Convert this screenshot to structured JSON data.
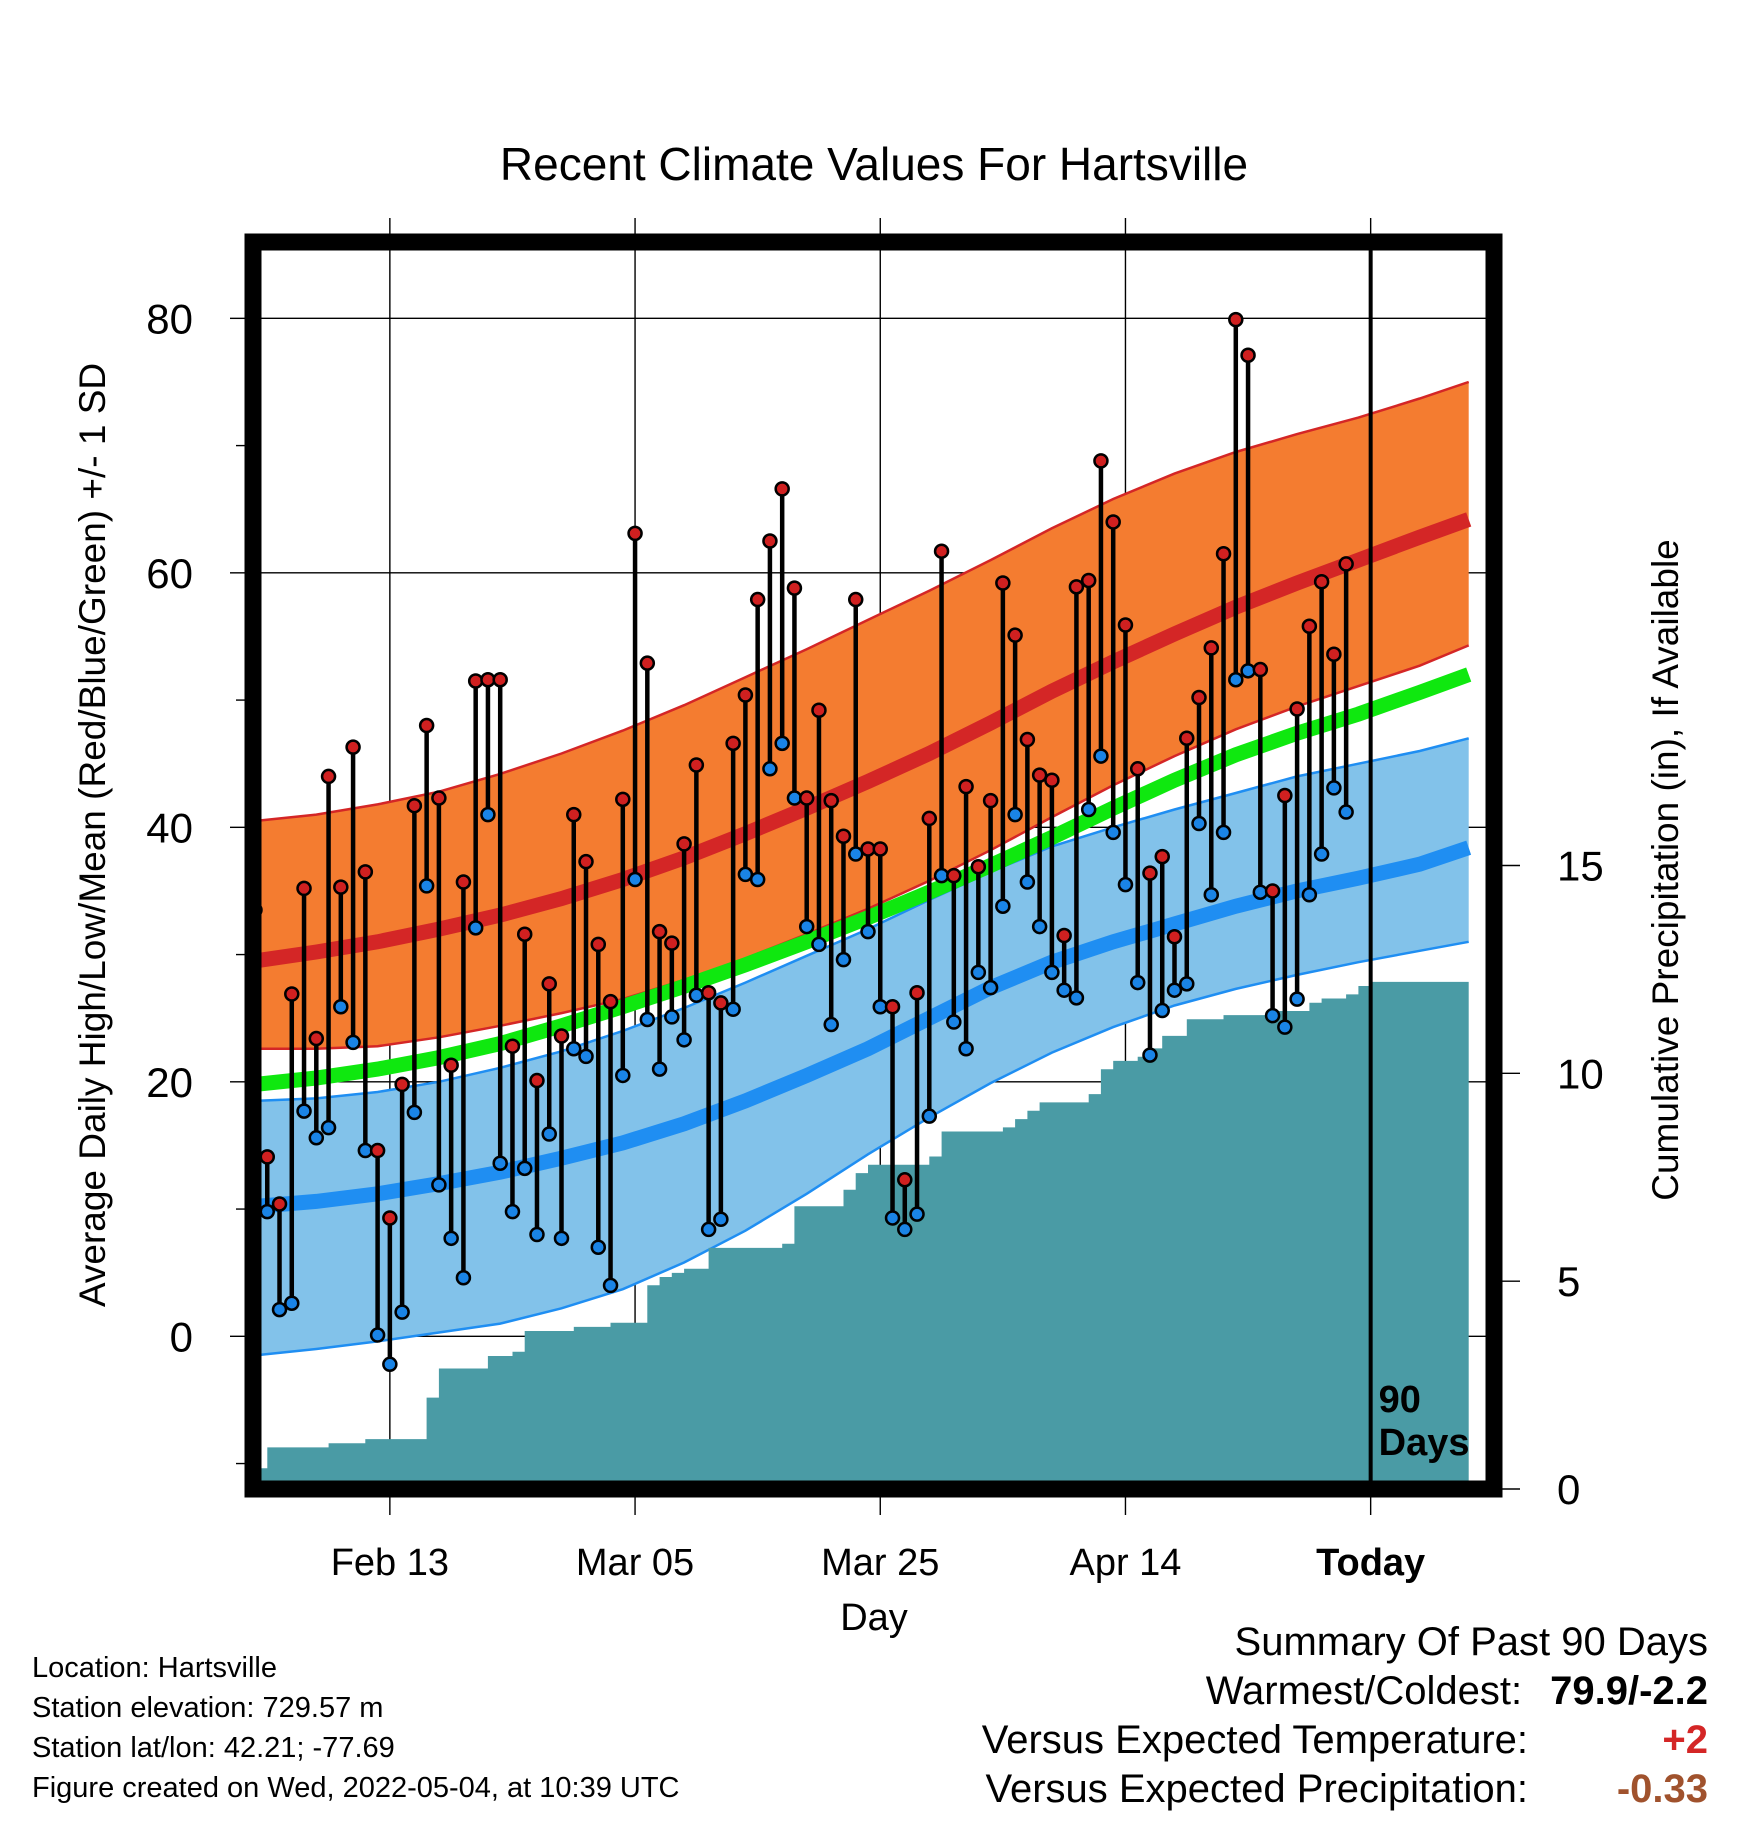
{
  "chart_data": {
    "type": "line",
    "title": "Recent Climate Values For Hartsville",
    "xlabel": "Day",
    "ylabel": "Average Daily High/Low/Mean (Red/Blue/Green) +/- 1 SD",
    "y2label": "Cumulative Precipitation (in), If Available",
    "x_ticks": [
      {
        "day": 11,
        "label": "Feb 13"
      },
      {
        "day": 31,
        "label": "Mar 05"
      },
      {
        "day": 51,
        "label": "Mar 25"
      },
      {
        "day": 71,
        "label": "Apr 14"
      },
      {
        "day": 91,
        "label": "Today"
      }
    ],
    "xlim": [
      0,
      100
    ],
    "ylim": [
      -12,
      86
    ],
    "y_ticks": [
      0,
      20,
      40,
      60,
      80
    ],
    "y2lim": [
      0,
      30
    ],
    "y2_ticks": [
      0,
      5,
      10,
      15
    ],
    "window_marker_day": 91,
    "window_marker_label": [
      "90",
      "Days"
    ],
    "colors": {
      "high_band": "#f47c30",
      "high_mean": "#d42626",
      "low_band": "#82c2ea",
      "low_mean": "#1f8ef2",
      "mean_line": "#0fe80f",
      "precip": "#4a9ba5",
      "high_point": "#d02020",
      "low_point": "#1a84e6"
    },
    "normals": {
      "days": [
        0,
        5,
        10,
        15,
        20,
        25,
        30,
        35,
        40,
        45,
        50,
        55,
        60,
        65,
        70,
        75,
        80,
        85,
        90,
        95,
        99
      ],
      "high_mean": [
        29.5,
        30.2,
        31.0,
        32.0,
        33.1,
        34.4,
        35.9,
        37.6,
        39.5,
        41.5,
        43.6,
        45.8,
        48.2,
        50.7,
        53.0,
        55.2,
        57.3,
        59.2,
        61.0,
        62.8,
        64.2
      ],
      "high_upper": [
        40.5,
        41.0,
        41.8,
        42.8,
        44.2,
        45.8,
        47.6,
        49.6,
        51.8,
        54.0,
        56.3,
        58.6,
        61.0,
        63.5,
        65.8,
        67.8,
        69.5,
        70.9,
        72.2,
        73.7,
        75.0
      ],
      "high_lower": [
        22.6,
        22.6,
        22.8,
        23.5,
        24.4,
        25.4,
        26.5,
        28.0,
        29.7,
        31.6,
        33.6,
        35.8,
        38.2,
        40.8,
        43.3,
        45.6,
        47.7,
        49.5,
        51.1,
        52.7,
        54.3
      ],
      "mean": [
        19.8,
        20.3,
        21.0,
        21.9,
        23.0,
        24.4,
        25.9,
        27.5,
        29.2,
        31.0,
        32.9,
        34.9,
        37.0,
        39.2,
        41.5,
        43.7,
        45.7,
        47.4,
        48.9,
        50.6,
        52.0
      ],
      "low_mean": [
        10.2,
        10.6,
        11.2,
        12.0,
        12.9,
        14.0,
        15.2,
        16.7,
        18.5,
        20.5,
        22.6,
        25.0,
        27.4,
        29.4,
        31.0,
        32.4,
        33.8,
        35.0,
        36.0,
        37.1,
        38.4
      ],
      "low_upper": [
        18.5,
        18.7,
        19.2,
        20.0,
        21.1,
        22.4,
        24.0,
        25.8,
        27.8,
        29.9,
        32.0,
        34.3,
        36.5,
        38.5,
        40.0,
        41.4,
        42.7,
        44.0,
        45.0,
        46.0,
        47.0
      ],
      "low_lower": [
        -1.5,
        -1.0,
        -0.4,
        0.3,
        1.0,
        2.2,
        3.7,
        5.8,
        8.3,
        11.2,
        14.3,
        17.2,
        19.9,
        22.3,
        24.3,
        26.0,
        27.3,
        28.4,
        29.4,
        30.3,
        31.0
      ]
    },
    "observed": {
      "high": [
        33.5,
        14.1,
        10.4,
        26.9,
        35.2,
        23.4,
        44.0,
        35.3,
        46.3,
        36.5,
        14.6,
        9.3,
        19.8,
        41.7,
        48.0,
        42.3,
        21.3,
        35.7,
        51.5,
        51.6,
        51.6,
        22.8,
        31.6,
        20.1,
        27.7,
        23.6,
        41.0,
        37.3,
        30.8,
        26.3,
        42.2,
        63.1,
        52.9,
        31.8,
        30.9,
        38.7,
        44.9,
        27.0,
        26.2,
        46.6,
        50.4,
        57.9,
        62.5,
        66.6,
        58.8,
        42.3,
        49.2,
        42.1,
        39.3,
        57.9,
        38.3,
        38.3,
        25.9,
        12.3,
        27.0,
        40.7,
        61.7,
        36.2,
        43.2,
        36.9,
        42.1,
        59.2,
        55.1,
        46.9,
        44.1,
        43.7,
        31.5,
        58.9,
        59.4,
        68.8,
        64.0,
        55.9,
        44.6,
        36.4,
        37.7,
        31.4,
        47.0,
        50.2,
        54.1,
        61.5,
        79.9,
        77.1,
        52.4,
        35.0,
        42.5,
        49.3,
        55.8,
        59.3,
        53.6,
        60.7
      ],
      "low": [
        14.1,
        9.8,
        2.1,
        2.6,
        17.7,
        15.6,
        16.4,
        25.9,
        23.1,
        14.6,
        0.1,
        -2.2,
        1.9,
        17.6,
        35.4,
        11.9,
        7.7,
        4.6,
        32.1,
        41.0,
        13.6,
        9.8,
        13.2,
        8.0,
        15.9,
        7.7,
        22.6,
        22.0,
        7.0,
        4.0,
        20.5,
        35.9,
        24.9,
        21.0,
        25.1,
        23.3,
        26.8,
        8.4,
        9.2,
        25.7,
        36.3,
        35.9,
        44.6,
        46.6,
        42.3,
        32.2,
        30.8,
        24.5,
        29.6,
        37.9,
        31.8,
        25.9,
        9.3,
        8.4,
        9.6,
        17.3,
        36.2,
        24.7,
        22.6,
        28.6,
        27.4,
        33.8,
        41.0,
        35.7,
        32.2,
        28.6,
        27.2,
        26.6,
        41.4,
        45.6,
        39.6,
        35.5,
        27.8,
        22.1,
        25.6,
        27.2,
        27.7,
        40.3,
        34.7,
        39.6,
        51.6,
        52.3,
        34.9,
        25.2,
        24.3,
        26.5,
        34.7,
        37.9,
        43.1,
        41.2
      ]
    },
    "precip": {
      "days": [
        0,
        1,
        6,
        9,
        13,
        14,
        15,
        18,
        19,
        21,
        22,
        23,
        24,
        26,
        27,
        29,
        31,
        32,
        33,
        34,
        35,
        37,
        38,
        43,
        44,
        47,
        48,
        49,
        50,
        55,
        56,
        61,
        62,
        63,
        64,
        67,
        68,
        69,
        70,
        72,
        73,
        74,
        76,
        79,
        83,
        86,
        87,
        89,
        90,
        91,
        99
      ],
      "cumulative": [
        0.5,
        1.0,
        1.1,
        1.2,
        1.2,
        2.2,
        2.9,
        2.9,
        3.2,
        3.3,
        3.8,
        3.8,
        3.8,
        3.9,
        3.9,
        4.0,
        4.0,
        4.9,
        5.1,
        5.2,
        5.3,
        5.8,
        5.8,
        5.9,
        6.8,
        6.8,
        7.2,
        7.6,
        7.8,
        8.0,
        8.6,
        8.7,
        8.9,
        9.1,
        9.3,
        9.3,
        9.5,
        10.1,
        10.3,
        10.4,
        10.6,
        10.9,
        11.3,
        11.4,
        11.5,
        11.7,
        11.8,
        11.9,
        12.1,
        12.2,
        12.2
      ]
    }
  },
  "info": {
    "location": "Location: Hartsville",
    "elevation": "Station elevation: 729.57 m",
    "latlon": "Station lat/lon: 42.21; -77.69",
    "created": "Figure created on Wed, 2022-05-04, at 10:39 UTC"
  },
  "summary": {
    "title": "Summary Of Past 90 Days",
    "warmest_coldest_label": "Warmest/Coldest:",
    "warmest_coldest_value": "79.9/-2.2",
    "temp_label": "Versus Expected Temperature:",
    "temp_value": "+2",
    "temp_color": "#d42626",
    "precip_label": "Versus Expected Precipitation:",
    "precip_value": "-0.33",
    "precip_color": "#a0522d"
  }
}
